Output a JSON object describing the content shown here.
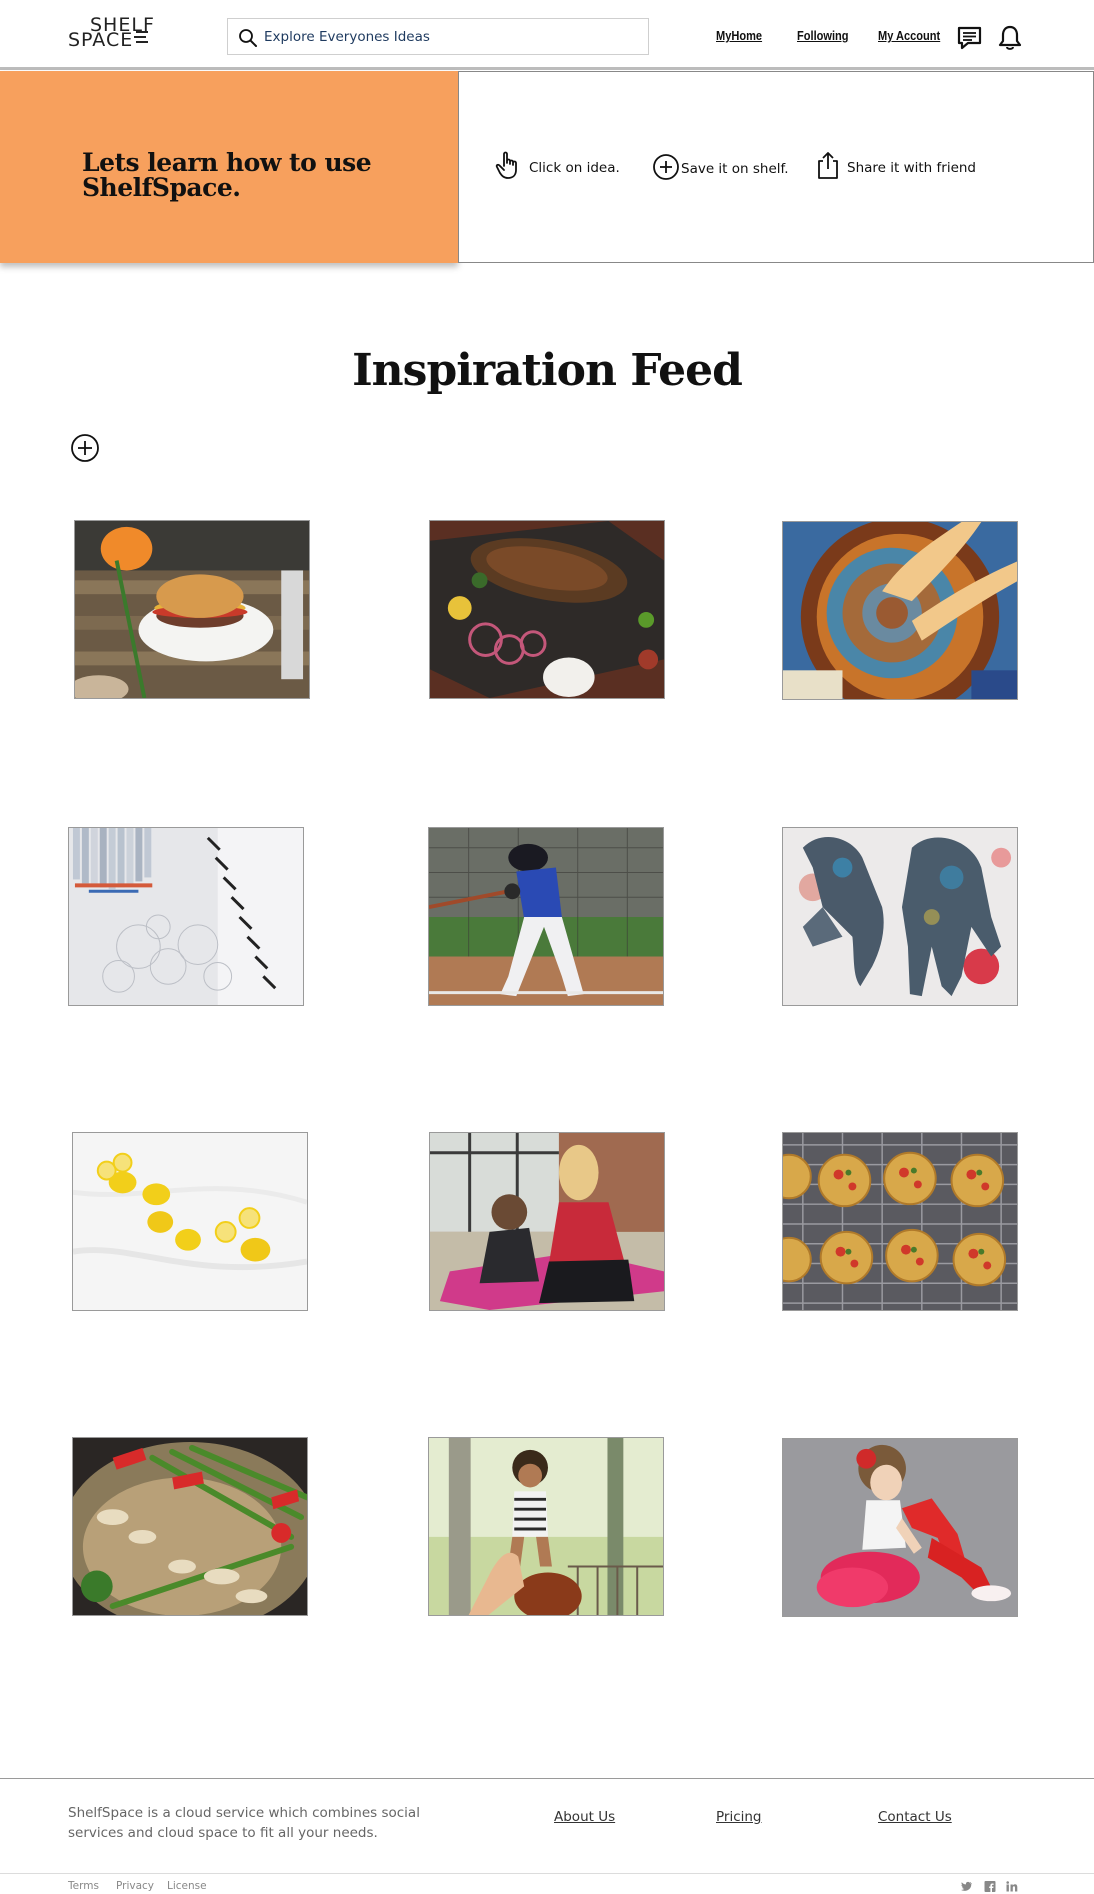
{
  "header": {
    "logo_top": "SHELF",
    "logo_bottom": "SPACE",
    "search_placeholder": "Explore Everyones Ideas",
    "nav": [
      "MyHome",
      "Following",
      "My Account"
    ],
    "icons": [
      "chat-icon",
      "bell-icon"
    ]
  },
  "banner": {
    "title": "Lets learn how to use ShelfSpace.",
    "steps": [
      {
        "label": "Click on idea.",
        "icon": "pointer-hand-icon"
      },
      {
        "label": "Save it on shelf.",
        "icon": "plus-circle-icon"
      },
      {
        "label": "Share it with friend",
        "icon": "share-icon"
      }
    ]
  },
  "feed": {
    "title": "Inspiration Feed",
    "add_icon": "plus-circle-icon",
    "ideas": [
      {
        "subject": "burger",
        "icon": "burger-photo"
      },
      {
        "subject": "grilled-meat",
        "icon": "grilled-meat-photo"
      },
      {
        "subject": "pottery",
        "icon": "pottery-photo"
      },
      {
        "subject": "pencils-sketch",
        "icon": "pencils-photo"
      },
      {
        "subject": "baseball",
        "icon": "baseball-photo"
      },
      {
        "subject": "painted-hands",
        "icon": "painted-hands-photo"
      },
      {
        "subject": "lemons",
        "icon": "lemons-photo"
      },
      {
        "subject": "yoga",
        "icon": "yoga-photo"
      },
      {
        "subject": "mini-pizzas",
        "icon": "mini-pizzas-photo"
      },
      {
        "subject": "stir-fry",
        "icon": "stir-fry-photo"
      },
      {
        "subject": "mother-child",
        "icon": "mother-child-photo"
      },
      {
        "subject": "ballerina",
        "icon": "ballerina-photo"
      }
    ]
  },
  "footer": {
    "description": "ShelfSpace is a cloud service which combines social services and cloud space to fit all your needs.",
    "links": [
      "About Us",
      "Pricing",
      "Contact Us"
    ],
    "legal": [
      "Terms",
      "Privacy",
      "License"
    ],
    "social": [
      "twitter-icon",
      "facebook-icon",
      "linkedin-icon"
    ]
  },
  "colors": {
    "banner_accent": "#f7a05d",
    "search_text": "#1e3a5f",
    "footer_text": "#666666"
  }
}
